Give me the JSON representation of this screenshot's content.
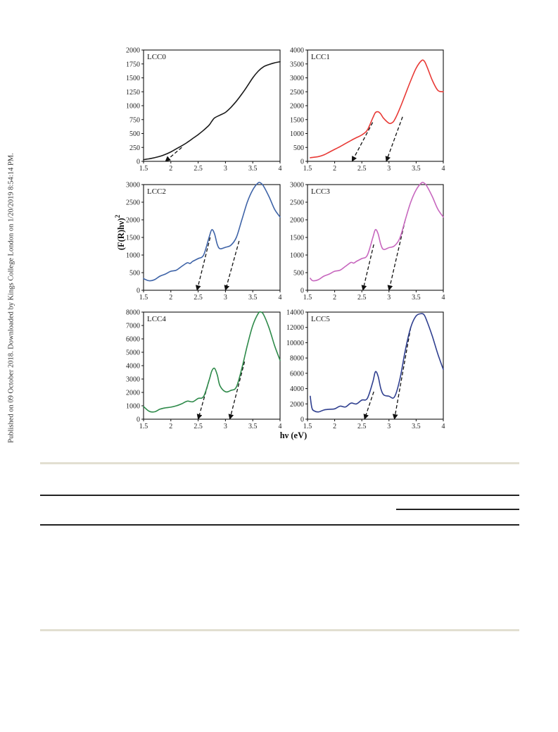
{
  "side_note": "Published on 09 October 2018. Downloaded by Kings College London on 1/20/2019 8:54:14 PM.",
  "figure": {
    "ylabel": "(F(R)hν)",
    "ylabel_sup": "2",
    "xlabel": "hν (eV)"
  },
  "chart_data": [
    {
      "type": "line",
      "label": "LCC0",
      "color": "#1a1a1a",
      "xlim": [
        1.5,
        4.0
      ],
      "ylim": [
        0,
        2000
      ],
      "xticks": [
        1.5,
        2.0,
        2.5,
        3.0,
        3.5,
        4.0
      ],
      "yticks": [
        0,
        250,
        500,
        750,
        1000,
        1250,
        1500,
        1750,
        2000
      ],
      "x": [
        1.5,
        1.6,
        1.7,
        1.8,
        1.9,
        2.0,
        2.1,
        2.2,
        2.3,
        2.4,
        2.5,
        2.6,
        2.7,
        2.75,
        2.8,
        2.9,
        3.0,
        3.1,
        3.2,
        3.3,
        3.4,
        3.5,
        3.6,
        3.7,
        3.8,
        3.9,
        4.0
      ],
      "y": [
        30,
        45,
        65,
        90,
        125,
        170,
        225,
        280,
        340,
        410,
        480,
        560,
        650,
        720,
        780,
        830,
        880,
        970,
        1080,
        1210,
        1350,
        1500,
        1620,
        1700,
        1740,
        1770,
        1790
      ],
      "tangents": [
        [
          1.9,
          0,
          2.2,
          250
        ]
      ]
    },
    {
      "type": "line",
      "label": "LCC1",
      "color": "#e83a36",
      "xlim": [
        1.5,
        4.0
      ],
      "ylim": [
        0,
        4000
      ],
      "xticks": [
        1.5,
        2.0,
        2.5,
        3.0,
        3.5,
        4.0
      ],
      "yticks": [
        0,
        500,
        1000,
        1500,
        2000,
        2500,
        3000,
        3500,
        4000
      ],
      "x": [
        1.55,
        1.7,
        1.8,
        1.9,
        2.0,
        2.1,
        2.2,
        2.3,
        2.4,
        2.5,
        2.6,
        2.7,
        2.75,
        2.8,
        2.85,
        2.9,
        3.0,
        3.05,
        3.1,
        3.2,
        3.3,
        3.4,
        3.5,
        3.6,
        3.65,
        3.7,
        3.8,
        3.9,
        4.0
      ],
      "y": [
        130,
        170,
        230,
        330,
        430,
        530,
        640,
        750,
        850,
        950,
        1120,
        1550,
        1750,
        1780,
        1700,
        1550,
        1370,
        1380,
        1480,
        1900,
        2400,
        2900,
        3350,
        3620,
        3600,
        3400,
        2900,
        2550,
        2500
      ],
      "tangents": [
        [
          2.32,
          0,
          2.7,
          1400
        ],
        [
          2.95,
          0,
          3.25,
          1600
        ]
      ]
    },
    {
      "type": "line",
      "label": "LCC2",
      "color": "#3e63a7",
      "xlim": [
        1.5,
        4.0
      ],
      "ylim": [
        0,
        3000
      ],
      "xticks": [
        1.5,
        2.0,
        2.5,
        3.0,
        3.5,
        4.0
      ],
      "yticks": [
        0,
        500,
        1000,
        1500,
        2000,
        2500,
        3000
      ],
      "x": [
        1.5,
        1.6,
        1.7,
        1.8,
        1.9,
        2.0,
        2.1,
        2.2,
        2.3,
        2.35,
        2.4,
        2.5,
        2.6,
        2.7,
        2.75,
        2.8,
        2.85,
        2.9,
        3.0,
        3.1,
        3.2,
        3.3,
        3.4,
        3.5,
        3.6,
        3.65,
        3.7,
        3.8,
        3.9,
        4.0
      ],
      "y": [
        330,
        270,
        300,
        400,
        460,
        540,
        570,
        680,
        780,
        760,
        820,
        900,
        1000,
        1500,
        1720,
        1600,
        1300,
        1180,
        1220,
        1280,
        1500,
        2000,
        2500,
        2850,
        3050,
        3040,
        2950,
        2650,
        2300,
        2080
      ],
      "tangents": [
        [
          2.48,
          0,
          2.72,
          1500
        ],
        [
          3.0,
          0,
          3.25,
          1400
        ]
      ]
    },
    {
      "type": "line",
      "label": "LCC3",
      "color": "#c767be",
      "xlim": [
        1.5,
        4.0
      ],
      "ylim": [
        0,
        3000
      ],
      "xticks": [
        1.5,
        2.0,
        2.5,
        3.0,
        3.5,
        4.0
      ],
      "yticks": [
        0,
        500,
        1000,
        1500,
        2000,
        2500,
        3000
      ],
      "x": [
        1.55,
        1.6,
        1.7,
        1.8,
        1.9,
        2.0,
        2.1,
        2.2,
        2.3,
        2.35,
        2.4,
        2.5,
        2.6,
        2.7,
        2.75,
        2.8,
        2.85,
        2.9,
        3.0,
        3.1,
        3.2,
        3.3,
        3.4,
        3.5,
        3.6,
        3.65,
        3.7,
        3.8,
        3.9,
        4.0
      ],
      "y": [
        340,
        270,
        300,
        400,
        460,
        540,
        570,
        680,
        790,
        770,
        820,
        900,
        990,
        1480,
        1720,
        1600,
        1300,
        1160,
        1210,
        1260,
        1480,
        2000,
        2500,
        2850,
        3050,
        3040,
        2950,
        2650,
        2300,
        2080
      ],
      "tangents": [
        [
          2.52,
          0,
          2.72,
          1300
        ],
        [
          3.0,
          0,
          3.3,
          2000
        ]
      ]
    },
    {
      "type": "line",
      "label": "LCC4",
      "color": "#2e8a4a",
      "xlim": [
        1.5,
        4.0
      ],
      "ylim": [
        0,
        8000
      ],
      "xticks": [
        1.5,
        2.0,
        2.5,
        3.0,
        3.5,
        4.0
      ],
      "yticks": [
        0,
        1000,
        2000,
        3000,
        4000,
        5000,
        6000,
        7000,
        8000
      ],
      "x": [
        1.5,
        1.6,
        1.7,
        1.8,
        1.9,
        2.0,
        2.1,
        2.2,
        2.3,
        2.4,
        2.5,
        2.6,
        2.7,
        2.75,
        2.8,
        2.85,
        2.9,
        3.0,
        3.1,
        3.2,
        3.3,
        3.4,
        3.5,
        3.6,
        3.65,
        3.7,
        3.8,
        3.9,
        4.0
      ],
      "y": [
        950,
        600,
        550,
        750,
        850,
        900,
        1000,
        1150,
        1350,
        1300,
        1550,
        1700,
        2900,
        3600,
        3800,
        3300,
        2500,
        2050,
        2150,
        2400,
        3800,
        5500,
        7000,
        7900,
        8000,
        7800,
        6800,
        5500,
        4400
      ],
      "tangents": [
        [
          2.5,
          0,
          2.7,
          2900
        ],
        [
          3.08,
          0,
          3.35,
          4300
        ]
      ]
    },
    {
      "type": "line",
      "label": "LCC5",
      "color": "#2f3f8f",
      "xlim": [
        1.5,
        4.0
      ],
      "ylim": [
        0,
        14000
      ],
      "xticks": [
        1.5,
        2.0,
        2.5,
        3.0,
        3.5,
        4.0
      ],
      "yticks": [
        0,
        2000,
        4000,
        6000,
        8000,
        10000,
        12000,
        14000
      ],
      "x": [
        1.55,
        1.58,
        1.62,
        1.7,
        1.8,
        1.9,
        2.0,
        2.1,
        2.2,
        2.3,
        2.4,
        2.5,
        2.6,
        2.7,
        2.75,
        2.8,
        2.85,
        2.9,
        3.0,
        3.1,
        3.2,
        3.3,
        3.4,
        3.5,
        3.6,
        3.65,
        3.7,
        3.8,
        3.9,
        4.0
      ],
      "y": [
        3000,
        1500,
        1100,
        950,
        1200,
        1300,
        1350,
        1700,
        1600,
        2100,
        2000,
        2500,
        2700,
        4800,
        6200,
        5600,
        4000,
        3200,
        3000,
        2900,
        5200,
        9000,
        12000,
        13500,
        13800,
        13600,
        12800,
        10800,
        8500,
        6500
      ],
      "tangents": [
        [
          2.55,
          0,
          2.72,
          3600
        ],
        [
          3.1,
          0,
          3.4,
          12000
        ]
      ]
    }
  ]
}
